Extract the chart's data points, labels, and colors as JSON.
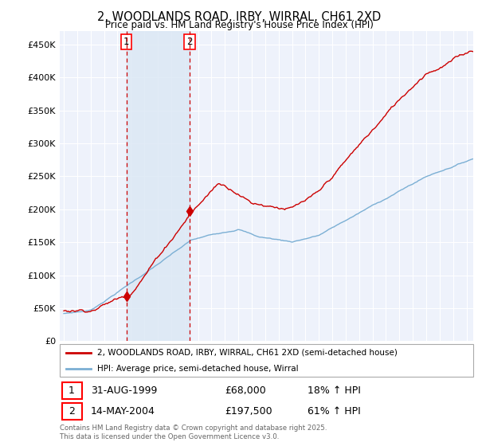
{
  "title": "2, WOODLANDS ROAD, IRBY, WIRRAL, CH61 2XD",
  "subtitle": "Price paid vs. HM Land Registry's House Price Index (HPI)",
  "ylabel_ticks": [
    "£0",
    "£50K",
    "£100K",
    "£150K",
    "£200K",
    "£250K",
    "£300K",
    "£350K",
    "£400K",
    "£450K"
  ],
  "ytick_values": [
    0,
    50000,
    100000,
    150000,
    200000,
    250000,
    300000,
    350000,
    400000,
    450000
  ],
  "ylim": [
    0,
    470000
  ],
  "xlim_left": 1994.7,
  "xlim_right": 2025.5,
  "legend_line1": "2, WOODLANDS ROAD, IRBY, WIRRAL, CH61 2XD (semi-detached house)",
  "legend_line2": "HPI: Average price, semi-detached house, Wirral",
  "sale1_date": "31-AUG-1999",
  "sale1_price": "£68,000",
  "sale1_hpi": "18% ↑ HPI",
  "sale2_date": "14-MAY-2004",
  "sale2_price": "£197,500",
  "sale2_hpi": "61% ↑ HPI",
  "footnote": "Contains HM Land Registry data © Crown copyright and database right 2025.\nThis data is licensed under the Open Government Licence v3.0.",
  "line_color_red": "#cc0000",
  "line_color_blue": "#7bafd4",
  "shade_color": "#dce8f5",
  "background_color": "#ffffff",
  "plot_bg_color": "#eef2fb",
  "grid_color": "#ffffff",
  "sale1_x_year": 1999.665,
  "sale2_x_year": 2004.37,
  "sale1_price_val": 68000,
  "sale2_price_val": 197500,
  "n_points": 366
}
